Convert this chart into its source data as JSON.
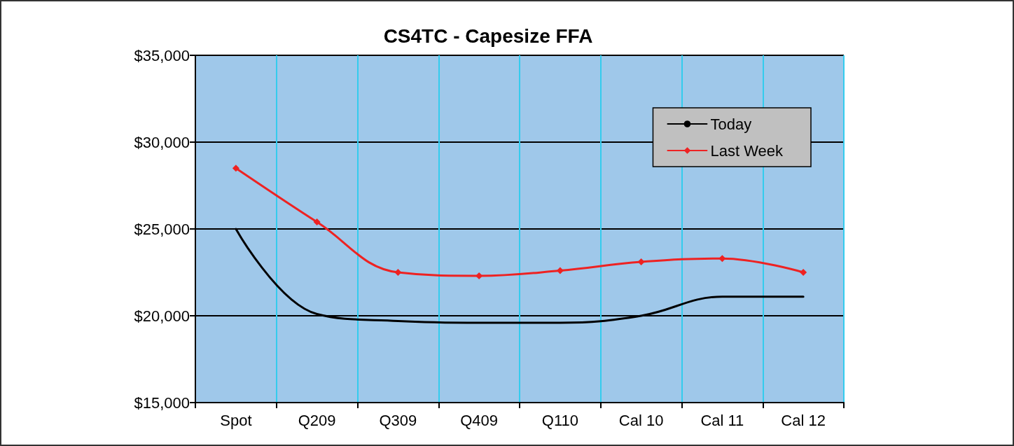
{
  "chart_data": {
    "type": "line",
    "title": "CS4TC - Capesize FFA",
    "categories": [
      "Spot",
      "Q209",
      "Q309",
      "Q409",
      "Q110",
      "Cal 10",
      "Cal 11",
      "Cal 12"
    ],
    "series": [
      {
        "name": "Today",
        "color": "#000000",
        "marker": "none",
        "values": [
          25000,
          20100,
          19700,
          19600,
          19600,
          20000,
          21100,
          21100
        ]
      },
      {
        "name": "Last Week",
        "color": "#ee2222",
        "marker": "diamond",
        "values": [
          28500,
          25400,
          22500,
          22300,
          22600,
          23100,
          23300,
          22500
        ]
      }
    ],
    "ylim": [
      15000,
      35000
    ],
    "yticks": [
      {
        "value": 15000,
        "label": "$15,000"
      },
      {
        "value": 20000,
        "label": "$20,000"
      },
      {
        "value": 25000,
        "label": "$25,000"
      },
      {
        "value": 30000,
        "label": "$30,000"
      },
      {
        "value": 35000,
        "label": "$35,000"
      }
    ],
    "grid": true,
    "legend": "top right"
  }
}
